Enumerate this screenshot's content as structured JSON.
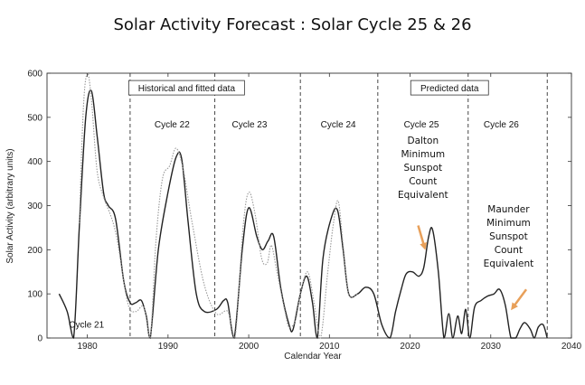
{
  "title": "Solar Activity Forecast : Solar Cycle 25 & 26",
  "chart_data": {
    "type": "line",
    "xlabel": "Calendar Year",
    "ylabel": "Solar Activity (arbitrary units)",
    "xlim": [
      1975,
      2040
    ],
    "ylim": [
      0,
      600
    ],
    "xticks": [
      1980,
      1990,
      2000,
      2010,
      2020,
      2030,
      2040
    ],
    "yticks": [
      0,
      100,
      200,
      300,
      400,
      500,
      600
    ],
    "grid": false,
    "boxes": [
      {
        "text": "Historical and fitted data"
      },
      {
        "text": "Predicted data"
      }
    ],
    "cycle_boundaries": [
      1985.3,
      1995.8,
      2006.4,
      2016.0,
      2027.2,
      2037.0
    ],
    "cycle_labels": [
      {
        "text": "Cycle 21",
        "x": 1979.9,
        "y": 32
      },
      {
        "text": "Cycle 22",
        "x": 1990.5,
        "y": 485
      },
      {
        "text": "Cycle 23",
        "x": 2000.1,
        "y": 485
      },
      {
        "text": "Cycle 24",
        "x": 2011.1,
        "y": 485
      },
      {
        "text": "Cycle 25",
        "x": 2021.4,
        "y": 485
      },
      {
        "text": "Cycle 26",
        "x": 2031.3,
        "y": 485
      }
    ],
    "annotations": [
      {
        "lines": [
          "Dalton",
          "Minimum",
          "Sunspot",
          "Count",
          "Equivalent"
        ],
        "x": 2021.6,
        "y": 440,
        "color": "#e8a05a",
        "arrow_from": [
          2021.0,
          255
        ],
        "arrow_to": [
          2021.8,
          205
        ]
      },
      {
        "lines": [
          "Maunder",
          "Minimum",
          "Sunspot",
          "Count",
          "Equivalent"
        ],
        "x": 2032.2,
        "y": 285,
        "color": "#e8a05a",
        "arrow_from": [
          2034.4,
          110
        ],
        "arrow_to": [
          2032.7,
          68
        ]
      }
    ],
    "series": [
      {
        "style": "solid",
        "color": "#222222",
        "x": [
          1976.5,
          1977.5,
          1978.3,
          1979,
          1979.8,
          1980.5,
          1981.2,
          1982,
          1982.6,
          1983.5,
          1984.5,
          1985.3,
          1986,
          1986.7,
          1987.3,
          1987.8,
          1988.8,
          1990,
          1991,
          1991.7,
          1992.5,
          1993.5,
          1994.5,
          1996,
          1996.9,
          1997.4,
          1998.2,
          1999.2,
          2000,
          2001,
          2001.7,
          2002.4,
          2003.1,
          2004,
          2005,
          2005.5,
          2006.4,
          2007.2,
          2007.9,
          2008.5,
          2009.2,
          2010.2,
          2011,
          2011.7,
          2012.4,
          2013.5,
          2014.5,
          2015.5,
          2016.5,
          2017.5,
          2018.2,
          2018.9,
          2019.5,
          2020.3,
          2021.1,
          2021.7,
          2022.3,
          2022.8,
          2023.5,
          2024.2,
          2024.8,
          2025.3,
          2025.9,
          2026.4,
          2026.9,
          2027.4,
          2028,
          2028.8,
          2029.6,
          2030.4,
          2031.1,
          2031.8,
          2032.5,
          2033.1,
          2033.6,
          2034.2,
          2034.9,
          2035.4,
          2035.9,
          2036.5,
          2037
        ],
        "y": [
          100,
          60,
          0,
          250,
          500,
          560,
          460,
          330,
          300,
          270,
          130,
          80,
          80,
          85,
          50,
          0,
          200,
          330,
          410,
          405,
          260,
          100,
          60,
          65,
          85,
          80,
          0,
          200,
          295,
          230,
          200,
          220,
          230,
          110,
          30,
          20,
          100,
          140,
          80,
          0,
          180,
          270,
          290,
          200,
          100,
          100,
          115,
          100,
          30,
          0,
          60,
          110,
          145,
          150,
          140,
          160,
          230,
          245,
          150,
          0,
          55,
          0,
          50,
          10,
          65,
          0,
          70,
          85,
          95,
          100,
          110,
          75,
          0,
          0,
          20,
          35,
          20,
          0,
          25,
          30,
          0
        ]
      },
      {
        "style": "dotted",
        "color": "#999999",
        "x": [
          1979,
          1979.5,
          1980,
          1980.5,
          1981.2,
          1982,
          1983.5,
          1985,
          1986,
          1987,
          1987.8,
          1988.5,
          1989.3,
          1990.2,
          1991,
          1991.9,
          1993,
          1994.5,
          1996,
          1997.4,
          1998.3,
          1999.3,
          2000,
          2000.8,
          2001.6,
          2002.3,
          2002.8,
          2003.5,
          2004.5,
          2005,
          2005.8,
          2006.4,
          2007.3,
          2008.1,
          2008.9,
          2009.8,
          2010.5,
          2011.1,
          2011.7,
          2012.4,
          2013.5
        ],
        "y": [
          260,
          520,
          600,
          540,
          380,
          320,
          240,
          80,
          60,
          70,
          0,
          220,
          360,
          390,
          430,
          380,
          260,
          120,
          55,
          60,
          0,
          250,
          330,
          280,
          180,
          170,
          210,
          150,
          60,
          25,
          40,
          100,
          150,
          80,
          0,
          150,
          260,
          310,
          210,
          100,
          100
        ]
      }
    ]
  }
}
